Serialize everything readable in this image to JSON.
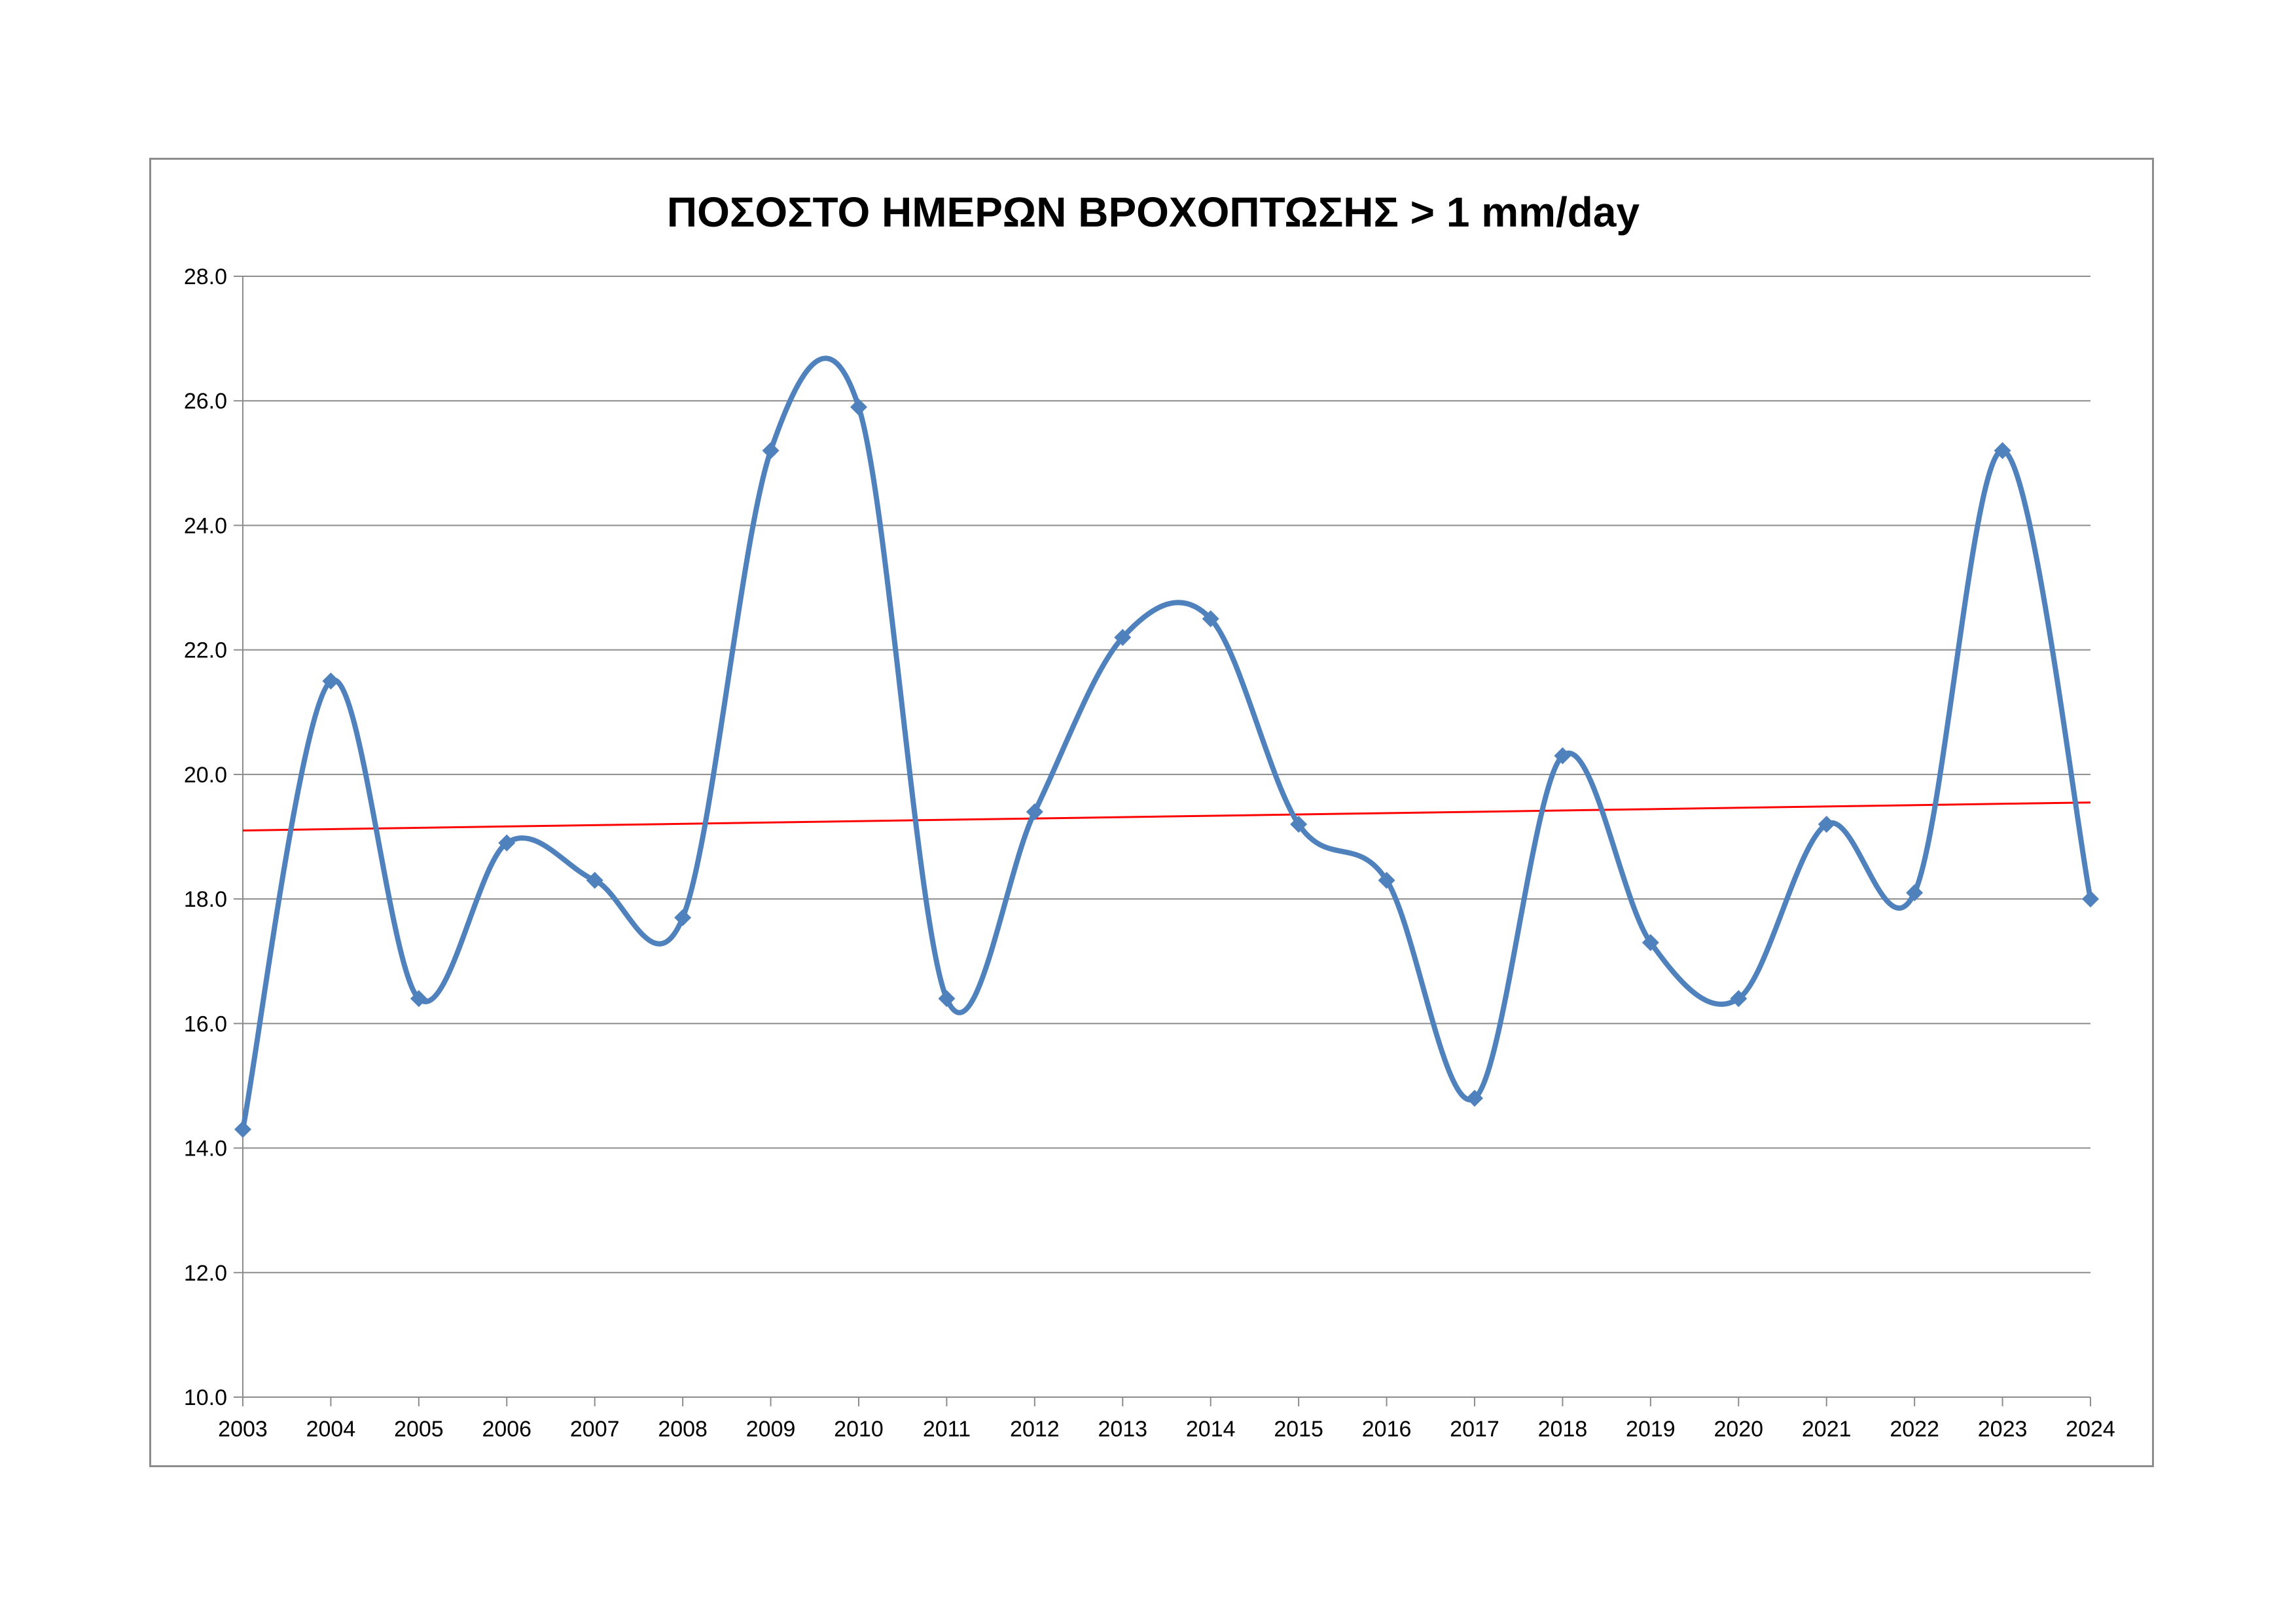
{
  "chart_data": {
    "type": "line",
    "title": "ΠΟΣΟΣΤΟ ΗΜΕΡΩΝ ΒΡΟΧΟΠΤΩΣΗΣ > 1 mm/day",
    "xlabel": "",
    "ylabel": "",
    "categories": [
      "2003",
      "2004",
      "2005",
      "2006",
      "2007",
      "2008",
      "2009",
      "2010",
      "2011",
      "2012",
      "2013",
      "2014",
      "2015",
      "2016",
      "2017",
      "2018",
      "2019",
      "2020",
      "2021",
      "2022",
      "2023",
      "2024"
    ],
    "series": [
      {
        "values": [
          14.3,
          21.5,
          16.4,
          18.9,
          18.3,
          17.7,
          25.2,
          25.9,
          16.4,
          19.4,
          22.2,
          22.5,
          19.2,
          18.3,
          14.8,
          20.3,
          17.3,
          16.4,
          19.2,
          18.1,
          25.2,
          18.0
        ]
      }
    ],
    "trendline": {
      "start": 19.1,
      "end": 19.55
    },
    "ylim": [
      10.0,
      28.0
    ],
    "yticks": [
      "10.0",
      "12.0",
      "14.0",
      "16.0",
      "18.0",
      "20.0",
      "22.0",
      "24.0",
      "26.0",
      "28.0"
    ],
    "grid": true,
    "legend": "none",
    "colors": {
      "series": "#4f81bd",
      "trendline": "#ff0000",
      "grid": "#8c8c8c",
      "axis": "#8c8c8c"
    }
  }
}
